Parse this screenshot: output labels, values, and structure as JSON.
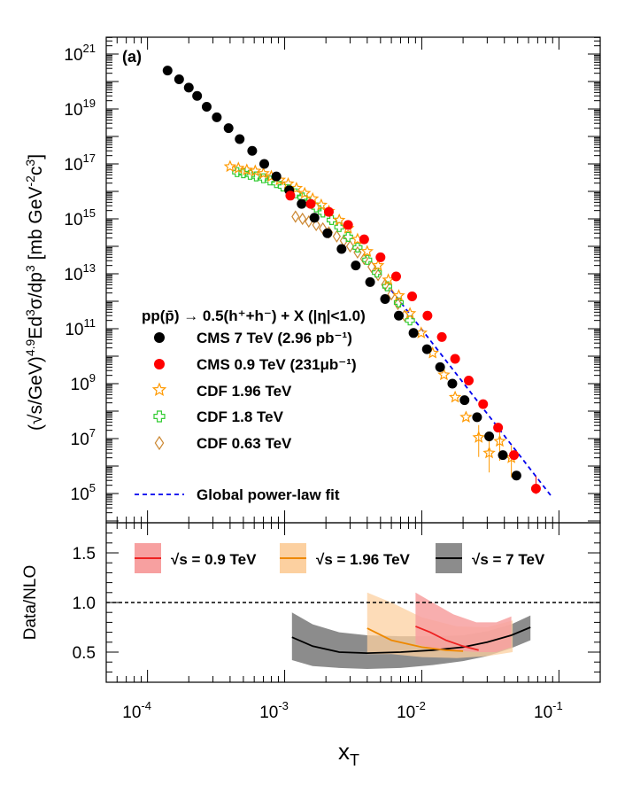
{
  "chart_data": [
    {
      "type": "scatter",
      "panel_label": "(a)",
      "xscale": "log",
      "yscale": "log",
      "xlim": [
        5e-05,
        0.2
      ],
      "ylim": [
        10000,
        3e+21
      ],
      "xlabel_main": "x",
      "xlabel_sub": "T",
      "ylabel": "(√s/GeV)^4.9 Ed³σ/dp³ [mb GeV⁻²c³]",
      "ylabel_parts": {
        "open": "(",
        "sqrt": "√",
        "s": "s/GeV)",
        "exp": "4.9",
        "body": "Ed",
        "exp2": "3",
        "sigma": "σ/dp",
        "exp3": "3",
        "units": " [mb GeV",
        "exp4": "-2",
        "c": "c",
        "exp5": "3",
        "close": "]"
      },
      "y_ticks": [
        {
          "value": 100000.0,
          "base": "10",
          "exp": "5"
        },
        {
          "value": 10000000.0,
          "base": "10",
          "exp": "7"
        },
        {
          "value": 1000000000.0,
          "base": "10",
          "exp": "9"
        },
        {
          "value": 100000000000.0,
          "base": "10",
          "exp": "11"
        },
        {
          "value": 10000000000000.0,
          "base": "10",
          "exp": "13"
        },
        {
          "value": 1000000000000000.0,
          "base": "10",
          "exp": "15"
        },
        {
          "value": 1e+17,
          "base": "10",
          "exp": "17"
        },
        {
          "value": 1e+19,
          "base": "10",
          "exp": "19"
        },
        {
          "value": 1e+21,
          "base": "10",
          "exp": "21"
        }
      ],
      "legend": {
        "title": "pp(p̄) → 0.5(h⁺+h⁻) + X (|η|<1.0)",
        "entries": [
          {
            "label": "CMS 7 TeV (2.96 pb⁻¹)",
            "marker": "filled-circle",
            "color": "#000000"
          },
          {
            "label": "CMS 0.9 TeV (231μb⁻¹)",
            "marker": "filled-circle",
            "color": "#ff0000"
          },
          {
            "label": "CDF 1.96 TeV",
            "marker": "open-star",
            "color": "#ff9900"
          },
          {
            "label": "CDF 1.8 TeV",
            "marker": "open-cross",
            "color": "#33cc33"
          },
          {
            "label": "CDF 0.63 TeV",
            "marker": "open-diamond",
            "color": "#cc8833"
          },
          {
            "label": "Global power-law fit",
            "marker": "dashed-line",
            "color": "#0000ee"
          }
        ]
      },
      "series": [
        {
          "name": "CMS 7 TeV (2.96 pb⁻¹)",
          "x": [
            0.00014,
            0.00017,
            0.0002,
            0.00023,
            0.00027,
            0.00032,
            0.00039,
            0.00047,
            0.00058,
            0.00071,
            0.00087,
            0.00108,
            0.00133,
            0.00165,
            0.00205,
            0.0026,
            0.0033,
            0.0042,
            0.0054,
            0.0068,
            0.0087,
            0.0109,
            0.0136,
            0.0167,
            0.0205,
            0.0253,
            0.031,
            0.039,
            0.049
          ],
          "y": [
            2.5e+20,
            1.2e+20,
            6e+19,
            3e+19,
            1.2e+19,
            5e+18,
            2e+18,
            8e+17,
            3e+17,
            1e+17,
            3.5e+16,
            1.1e+16,
            3500000000000000.0,
            1100000000000000.0,
            300000000000000.0,
            80000000000000.0,
            20000000000000.0,
            5000000000000.0,
            1200000000000.0,
            300000000000.0,
            70000000000.0,
            18000000000.0,
            4000000000.0,
            1000000000.0,
            250000000.0,
            60000000.0,
            12000000.0,
            2500000.0,
            450000.0
          ]
        },
        {
          "name": "CMS 0.9 TeV (231μb⁻¹)",
          "x": [
            0.0011,
            0.00155,
            0.0021,
            0.0029,
            0.0038,
            0.005,
            0.0065,
            0.0085,
            0.011,
            0.014,
            0.0175,
            0.022,
            0.028,
            0.036,
            0.047,
            0.068
          ],
          "y": [
            7000000000000000.0,
            3500000000000000.0,
            1800000000000000.0,
            600000000000000.0,
            180000000000000.0,
            40000000000000.0,
            8000000000000.0,
            1500000000000.0,
            300000000000.0,
            50000000000.0,
            8000000000.0,
            1300000000.0,
            180000000.0,
            25000000.0,
            2500000.0,
            150000.0
          ]
        },
        {
          "name": "CDF 1.96 TeV",
          "x": [
            0.0004,
            0.00046,
            0.00053,
            0.00061,
            0.0007,
            0.0008,
            0.00092,
            0.00106,
            0.00122,
            0.0014,
            0.0016,
            0.00185,
            0.0021,
            0.0025,
            0.0029,
            0.0034,
            0.004,
            0.0048,
            0.0057,
            0.0068,
            0.0082,
            0.0099,
            0.012,
            0.0145,
            0.0175,
            0.021,
            0.026,
            0.031,
            0.037,
            0.045
          ],
          "y": [
            8e+16,
            7e+16,
            6e+16,
            5.5e+16,
            4.5e+16,
            3.5e+16,
            2.6e+16,
            1.9e+16,
            1.3e+16,
            8500000000000000.0,
            5400000000000000.0,
            3200000000000000.0,
            1900000000000000.0,
            900000000000000.0,
            450000000000000.0,
            180000000000000.0,
            65000000000000.0,
            20000000000000.0,
            6000000000000.0,
            1600000000000.0,
            360000000000.0,
            70000000000.0,
            13000000000.0,
            2100000000.0,
            320000000.0,
            60000000.0,
            11000000.0,
            3000000.0,
            8000000.0,
            2000000.0
          ]
        },
        {
          "name": "CDF 1.8 TeV",
          "x": [
            0.00045,
            0.0005,
            0.00056,
            0.00062,
            0.0007,
            0.00078,
            0.00087,
            0.00097,
            0.00108,
            0.0012,
            0.00135,
            0.0015,
            0.0017,
            0.0019,
            0.0022,
            0.0025,
            0.0029,
            0.0034,
            0.004,
            0.0047,
            0.0056,
            0.0068,
            0.0082
          ],
          "y": [
            5e+16,
            4.6e+16,
            4e+16,
            3.5e+16,
            3e+16,
            2.5e+16,
            2e+16,
            1.5e+16,
            1.2e+16,
            8500000000000000.0,
            6000000000000000.0,
            4000000000000000.0,
            2600000000000000.0,
            1700000000000000.0,
            900000000000000.0,
            500000000000000.0,
            220000000000000.0,
            90000000000000.0,
            32000000000000.0,
            11000000000000.0,
            3500000000000.0,
            900000000000.0,
            200000000000.0
          ]
        },
        {
          "name": "CDF 0.63 TeV",
          "x": [
            0.0012,
            0.00135,
            0.0015,
            0.0017,
            0.0019,
            0.0021,
            0.0024,
            0.0027,
            0.003,
            0.0034,
            0.0038,
            0.0043,
            0.0048,
            0.0054,
            0.006,
            0.0067,
            0.0075
          ],
          "y": [
            1200000000000000.0,
            1000000000000000.0,
            800000000000000.0,
            600000000000000.0,
            450000000000000.0,
            320000000000000.0,
            230000000000000.0,
            160000000000000.0,
            100000000000000.0,
            60000000000000.0,
            35000000000000.0,
            18000000000000.0,
            9000000000000.0,
            4000000000000.0,
            1800000000000.0,
            800000000000.0,
            300000000000.0
          ]
        },
        {
          "name": "Global power-law fit",
          "x": [
            0.006,
            0.01,
            0.02,
            0.04,
            0.088
          ],
          "y": [
            2500000000000.0,
            200000000000.0,
            4000000000.0,
            60000000.0,
            80000.0
          ]
        }
      ]
    },
    {
      "type": "line",
      "xscale": "log",
      "xlim": [
        5e-05,
        0.2
      ],
      "ylim": [
        0.2,
        1.8
      ],
      "ylabel": "Data/NLO",
      "y_ticks": [
        "0.5",
        "1.0",
        "1.5"
      ],
      "x_ticks": [
        {
          "value": 0.0001,
          "base": "10",
          "exp": "-4"
        },
        {
          "value": 0.001,
          "base": "10",
          "exp": "-3"
        },
        {
          "value": 0.01,
          "base": "10",
          "exp": "-2"
        },
        {
          "value": 0.1,
          "base": "10",
          "exp": "-1"
        }
      ],
      "reference_line": 1.0,
      "legend": [
        {
          "sqrt": "√",
          "label": "s = 0.9 TeV",
          "color": "#ee2222",
          "band": "#f7a0a0"
        },
        {
          "sqrt": "√",
          "label": "s = 1.96 TeV",
          "color": "#ee8800",
          "band": "#fcd0a0"
        },
        {
          "sqrt": "√",
          "label": "s = 7 TeV",
          "color": "#000000",
          "band": "#8c8c8c"
        }
      ],
      "series": [
        {
          "name": "√s = 0.9 TeV",
          "x": [
            0.009,
            0.0115,
            0.015,
            0.02,
            0.026
          ],
          "y": [
            0.76,
            0.7,
            0.62,
            0.56,
            0.52
          ],
          "band_upper": [
            1.1,
            1.0,
            0.88,
            0.8,
            0.8,
            0.86
          ],
          "band_lower": [
            0.58,
            0.54,
            0.52,
            0.5,
            0.5,
            0.55
          ],
          "band_x": [
            0.009,
            0.012,
            0.017,
            0.025,
            0.035,
            0.045
          ]
        },
        {
          "name": "√s = 1.96 TeV",
          "x": [
            0.004,
            0.006,
            0.01,
            0.015,
            0.02
          ],
          "y": [
            0.74,
            0.62,
            0.55,
            0.52,
            0.51
          ],
          "band_upper": [
            1.1,
            1.0,
            0.85,
            0.76,
            0.75,
            0.82
          ],
          "band_lower": [
            0.48,
            0.48,
            0.45,
            0.44,
            0.46,
            0.5
          ],
          "band_x": [
            0.004,
            0.006,
            0.01,
            0.018,
            0.03,
            0.046
          ]
        },
        {
          "name": "√s = 7 TeV",
          "x": [
            0.00113,
            0.0016,
            0.0025,
            0.004,
            0.007,
            0.012,
            0.02,
            0.03,
            0.045,
            0.062
          ],
          "y": [
            0.65,
            0.56,
            0.5,
            0.49,
            0.5,
            0.52,
            0.55,
            0.6,
            0.67,
            0.75
          ],
          "band_upper": [
            0.9,
            0.78,
            0.7,
            0.67,
            0.66,
            0.66,
            0.67,
            0.71,
            0.78,
            0.87
          ],
          "band_lower": [
            0.42,
            0.36,
            0.34,
            0.33,
            0.34,
            0.37,
            0.41,
            0.46,
            0.54,
            0.62
          ],
          "band_x": [
            0.00113,
            0.0016,
            0.0025,
            0.004,
            0.007,
            0.012,
            0.02,
            0.03,
            0.045,
            0.062
          ]
        }
      ]
    }
  ]
}
